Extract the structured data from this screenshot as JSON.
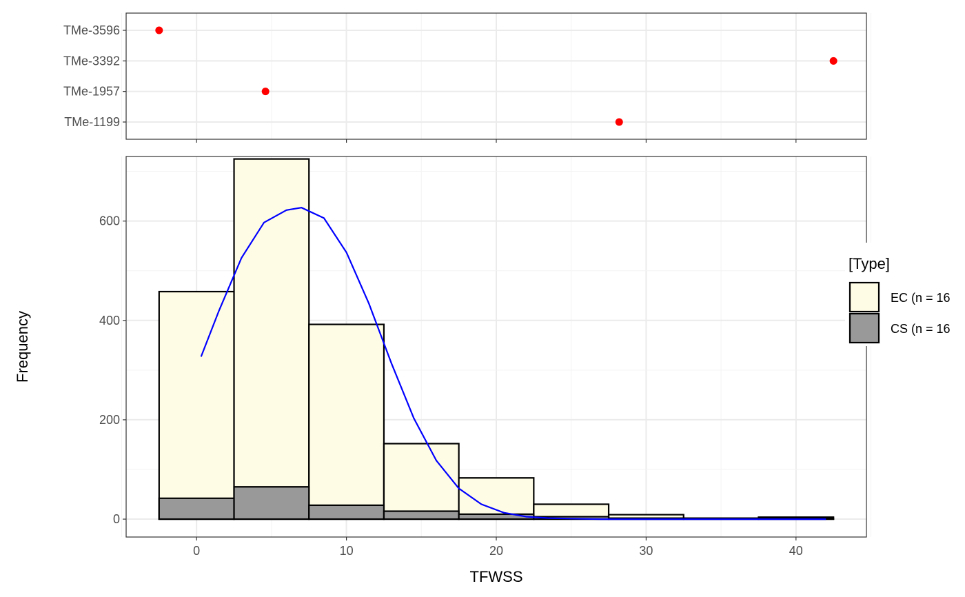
{
  "chart_data": [
    {
      "type": "scatter",
      "title": "",
      "xlabel": "",
      "ylabel": "",
      "xlim": [
        -4.7,
        44.7
      ],
      "point_color": "#ff0000",
      "categories": [
        "TMe-1199",
        "TMe-1957",
        "TMe-3392",
        "TMe-3596"
      ],
      "points": [
        {
          "label": "TMe-3596",
          "x": -2.5
        },
        {
          "label": "TMe-3392",
          "x": 42.5
        },
        {
          "label": "TMe-1957",
          "x": 4.6
        },
        {
          "label": "TMe-1199",
          "x": 28.2
        }
      ]
    },
    {
      "type": "bar",
      "subtype": "histogram-overlay",
      "title": "",
      "xlabel": "TFWSS",
      "ylabel": "Frequency",
      "xlim": [
        -4.7,
        44.7
      ],
      "ylim": [
        -36,
        730
      ],
      "x_ticks": [
        0,
        10,
        20,
        30,
        40
      ],
      "y_ticks": [
        0,
        200,
        400,
        600
      ],
      "bins": [
        [
          -2.5,
          2.5
        ],
        [
          2.5,
          7.5
        ],
        [
          7.5,
          12.5
        ],
        [
          12.5,
          17.5
        ],
        [
          17.5,
          22.5
        ],
        [
          22.5,
          27.5
        ],
        [
          27.5,
          32.5
        ],
        [
          32.5,
          37.5
        ],
        [
          37.5,
          42.5
        ]
      ],
      "series": [
        {
          "name": "EC (n = 16",
          "fill": "#fffce6",
          "values": [
            458,
            725,
            392,
            152,
            83,
            30,
            9,
            2,
            4
          ]
        },
        {
          "name": "CS (n = 16",
          "fill": "#999999",
          "values": [
            42,
            65,
            28,
            16,
            10,
            5,
            2,
            1,
            2
          ]
        }
      ],
      "curve": {
        "color": "#0000ff",
        "x": [
          0.3,
          1.5,
          3,
          4.5,
          6,
          7,
          8.5,
          10,
          11.5,
          13,
          14.5,
          16,
          17.5,
          19,
          20.5,
          22,
          23.5,
          25,
          27,
          30,
          35,
          42
        ],
        "y": [
          327,
          420,
          526,
          597,
          622,
          627,
          606,
          537,
          434,
          314,
          203,
          118,
          62,
          30,
          13,
          5,
          2,
          1,
          0,
          0,
          0,
          0
        ]
      },
      "legend": {
        "title": "[Type]",
        "position": "right"
      }
    }
  ]
}
